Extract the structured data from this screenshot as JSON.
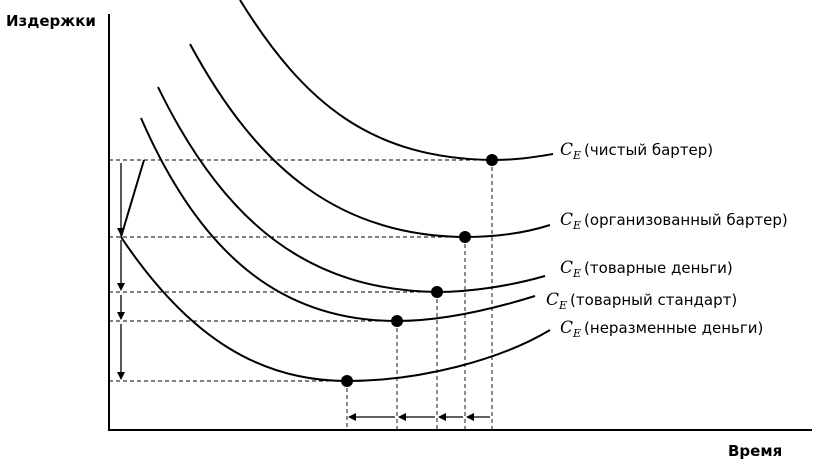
{
  "axes": {
    "y_label": "Издержки",
    "x_label": "Время"
  },
  "curves": [
    {
      "symbol": "C",
      "subscript": "E",
      "label": "(чистый бартер)"
    },
    {
      "symbol": "C",
      "subscript": "E",
      "label": "(организованный бартер)"
    },
    {
      "symbol": "C",
      "subscript": "E",
      "label": "(товарные деньги)"
    },
    {
      "symbol": "C",
      "subscript": "E",
      "label": "(товарный стандарт)"
    },
    {
      "symbol": "C",
      "subscript": "E",
      "label": "(неразменные деньги)"
    }
  ]
}
